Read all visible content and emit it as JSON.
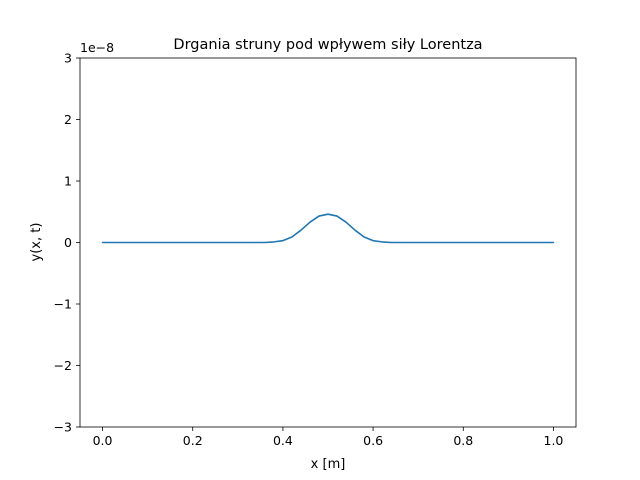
{
  "chart_data": {
    "type": "line",
    "title": "Drgania struny pod wpływem siły Lorentza",
    "xlabel": "x [m]",
    "ylabel": "y(x, t)",
    "y_offset_text": "1e−8",
    "xlim": [
      -0.05,
      1.05
    ],
    "ylim": [
      -3,
      3
    ],
    "y_scale_factor": 1e-08,
    "x_ticks": [
      0.0,
      0.2,
      0.4,
      0.6,
      0.8,
      1.0
    ],
    "x_tick_labels": [
      "0.0",
      "0.2",
      "0.4",
      "0.6",
      "0.8",
      "1.0"
    ],
    "y_ticks": [
      -3,
      -2,
      -1,
      0,
      1,
      2,
      3
    ],
    "y_tick_labels": [
      "−3",
      "−2",
      "−1",
      "0",
      "1",
      "2",
      "3"
    ],
    "grid": false,
    "legend": "none",
    "series": [
      {
        "color": "#1f77b4",
        "x": [
          0.0,
          0.1,
          0.2,
          0.3,
          0.36,
          0.38,
          0.4,
          0.42,
          0.44,
          0.46,
          0.48,
          0.5,
          0.52,
          0.54,
          0.56,
          0.58,
          0.6,
          0.62,
          0.64,
          0.7,
          0.8,
          0.9,
          1.0
        ],
        "y": [
          0.0,
          0.0,
          0.0,
          0.0,
          0.0,
          0.01,
          0.03,
          0.09,
          0.2,
          0.33,
          0.43,
          0.46,
          0.43,
          0.33,
          0.2,
          0.09,
          0.03,
          0.01,
          0.0,
          0.0,
          0.0,
          0.0,
          0.0
        ]
      }
    ]
  }
}
